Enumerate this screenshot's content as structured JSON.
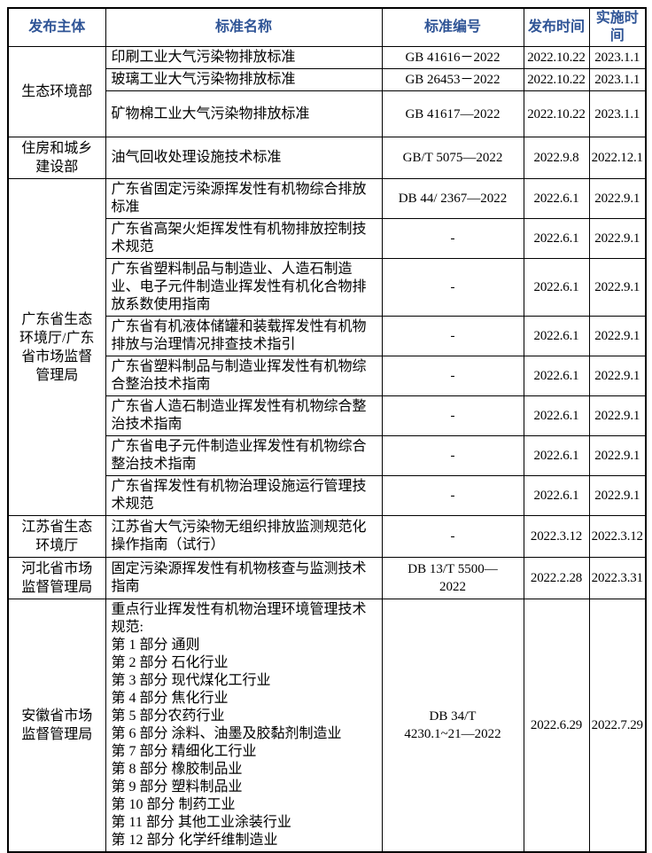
{
  "colors": {
    "header_text": "#2F5496",
    "border": "#000000",
    "body_text": "#000000",
    "background": "#ffffff"
  },
  "table": {
    "columns": [
      "发布主体",
      "标准名称",
      "标准编号",
      "发布时间",
      "实施时间"
    ],
    "empty_code_placeholder": "-",
    "groups": [
      {
        "publisher": "生态环境部",
        "rows": [
          {
            "name": "印刷工业大气污染物排放标准",
            "code": "GB 41616－2022",
            "issued": "2022.10.22",
            "effective": "2023.1.1"
          },
          {
            "name": "玻璃工业大气污染物排放标准",
            "code": "GB 26453－2022",
            "issued": "2022.10.22",
            "effective": "2023.1.1"
          },
          {
            "name": "矿物棉工业大气污染物排放标准",
            "code": "GB 41617—2022",
            "issued": "2022.10.22",
            "effective": "2023.1.1"
          }
        ]
      },
      {
        "publisher": "住房和城乡建设部",
        "rows": [
          {
            "name": "油气回收处理设施技术标准",
            "code": "GB/T 5075—2022",
            "issued": "2022.9.8",
            "effective": "2022.12.1"
          }
        ]
      },
      {
        "publisher": "广东省生态环境厅/广东省市场监督管理局",
        "rows": [
          {
            "name": "广东省固定污染源挥发性有机物综合排放标准",
            "code": "DB 44/ 2367—2022",
            "issued": "2022.6.1",
            "effective": "2022.9.1"
          },
          {
            "name": "广东省高架火炬挥发性有机物排放控制技术规范",
            "code": "-",
            "issued": "2022.6.1",
            "effective": "2022.9.1"
          },
          {
            "name": "广东省塑料制品与制造业、人造石制造业、电子元件制造业挥发性有机化合物排放系数使用指南",
            "code": "-",
            "issued": "2022.6.1",
            "effective": "2022.9.1"
          },
          {
            "name": "广东省有机液体储罐和装载挥发性有机物排放与治理情况排查技术指引",
            "code": "-",
            "issued": "2022.6.1",
            "effective": "2022.9.1"
          },
          {
            "name": "广东省塑料制品与制造业挥发性有机物综合整治技术指南",
            "code": "-",
            "issued": "2022.6.1",
            "effective": "2022.9.1"
          },
          {
            "name": "广东省人造石制造业挥发性有机物综合整治技术指南",
            "code": "-",
            "issued": "2022.6.1",
            "effective": "2022.9.1"
          },
          {
            "name": "广东省电子元件制造业挥发性有机物综合整治技术指南",
            "code": "-",
            "issued": "2022.6.1",
            "effective": "2022.9.1"
          },
          {
            "name": "广东省挥发性有机物治理设施运行管理技术规范",
            "code": "-",
            "issued": "2022.6.1",
            "effective": "2022.9.1"
          }
        ]
      },
      {
        "publisher": "江苏省生态环境厅",
        "rows": [
          {
            "name": "江苏省大气污染物无组织排放监测规范化操作指南（试行）",
            "code": "-",
            "issued": "2022.3.12",
            "effective": "2022.3.12"
          }
        ]
      },
      {
        "publisher": "河北省市场监督管理局",
        "rows": [
          {
            "name": "固定污染源挥发性有机物核查与监测技术指南",
            "code": "DB 13/T 5500—\n2022",
            "issued": "2022.2.28",
            "effective": "2022.3.31"
          }
        ]
      },
      {
        "publisher": "安徽省市场监督管理局",
        "rows": [
          {
            "name": "重点行业挥发性有机物治理环境管理技术规范:\n第 1 部分  通则\n第 2 部分  石化行业\n第 3 部分  现代煤化工行业\n第 4 部分  焦化行业\n第 5 部分农药行业\n第 6 部分  涂料、油墨及胶黏剂制造业\n第 7 部分  精细化工行业\n第 8 部分  橡胶制品业\n第 9 部分  塑料制品业\n第 10 部分  制药工业\n第 11 部分  其他工业涂装行业\n第 12 部分  化学纤维制造业",
            "code": "DB 34/T\n4230.1~21—2022",
            "issued": "2022.6.29",
            "effective": "2022.7.29"
          }
        ]
      }
    ]
  }
}
